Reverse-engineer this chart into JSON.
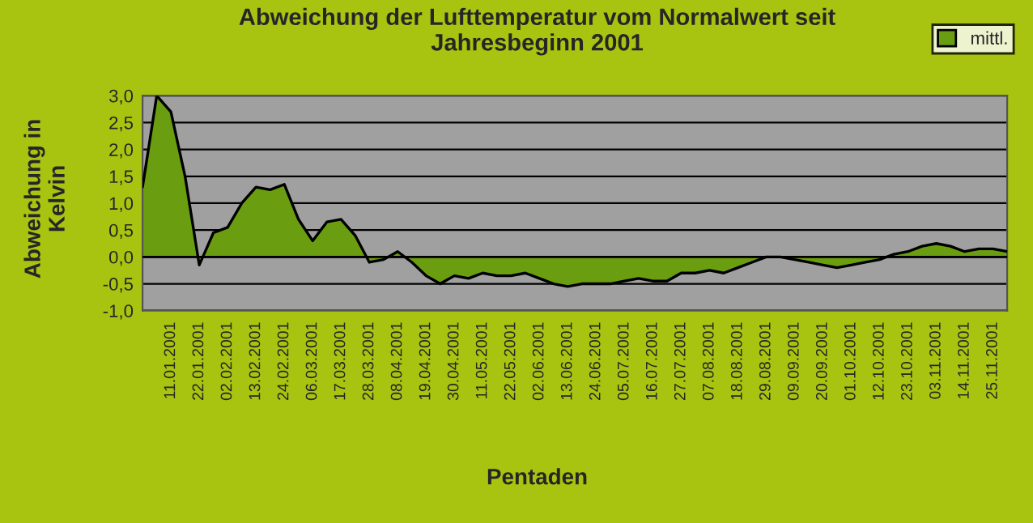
{
  "chart_data": {
    "type": "area",
    "title": "Abweichung der Lufttemperatur vom Normalwert seit\nJahresbeginn 2001",
    "xlabel": "Pentaden",
    "ylabel": "Abweichung in\nKelvin",
    "categories": [
      null,
      null,
      "11.01.2001",
      null,
      "22.01.2001",
      null,
      "02.02.2001",
      null,
      "13.02.2001",
      null,
      "24.02.2001",
      null,
      "06.03.2001",
      null,
      "17.03.2001",
      null,
      "28.03.2001",
      null,
      "08.04.2001",
      null,
      "19.04.2001",
      null,
      "30.04.2001",
      null,
      "11.05.2001",
      null,
      "22.05.2001",
      null,
      "02.06.2001",
      null,
      "13.06.2001",
      null,
      "24.06.2001",
      null,
      "05.07.2001",
      null,
      "16.07.2001",
      null,
      "27.07.2001",
      null,
      "07.08.2001",
      null,
      "18.08.2001",
      null,
      "29.08.2001",
      null,
      "09.09.2001",
      null,
      "20.09.2001",
      null,
      "01.10.2001",
      null,
      "12.10.2001",
      null,
      "23.10.2001",
      null,
      "03.11.2001",
      null,
      "14.11.2001",
      null,
      "25.11.2001",
      null
    ],
    "series": [
      {
        "name": "mittl.",
        "color": "#6a9e10",
        "values": [
          1.3,
          3.0,
          2.7,
          1.5,
          -0.15,
          0.45,
          0.55,
          1.0,
          1.3,
          1.25,
          1.35,
          0.7,
          0.3,
          0.65,
          0.7,
          0.4,
          -0.1,
          -0.05,
          0.1,
          -0.1,
          -0.35,
          -0.5,
          -0.35,
          -0.4,
          -0.3,
          -0.35,
          -0.35,
          -0.3,
          -0.4,
          -0.5,
          -0.55,
          -0.5,
          -0.5,
          -0.5,
          -0.45,
          -0.4,
          -0.45,
          -0.45,
          -0.3,
          -0.3,
          -0.25,
          -0.3,
          -0.2,
          -0.1,
          0.0,
          0.0,
          -0.05,
          -0.1,
          -0.15,
          -0.2,
          -0.15,
          -0.1,
          -0.05,
          0.05,
          0.1,
          0.2,
          0.25,
          0.2,
          0.1,
          0.15,
          0.15,
          0.1
        ]
      }
    ],
    "ylim": [
      -1,
      3
    ],
    "yticks": [
      {
        "value": -1,
        "label": "-1,0"
      },
      {
        "value": -0.5,
        "label": "-0,5"
      },
      {
        "value": 0,
        "label": "0,0"
      },
      {
        "value": 0.5,
        "label": "0,5"
      },
      {
        "value": 1,
        "label": "1,0"
      },
      {
        "value": 1.5,
        "label": "1,5"
      },
      {
        "value": 2,
        "label": "2,0"
      },
      {
        "value": 2.5,
        "label": "2,5"
      },
      {
        "value": 3,
        "label": "3,0"
      }
    ],
    "grid": "y",
    "legend": "top right"
  }
}
